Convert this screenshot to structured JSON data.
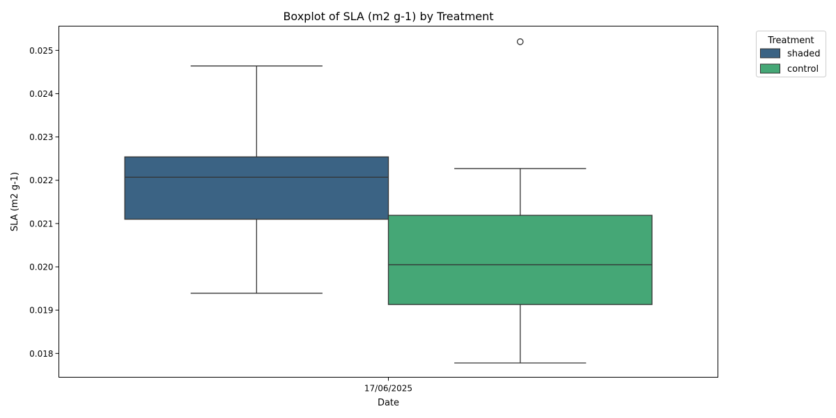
{
  "chart_data": {
    "type": "box",
    "title": "Boxplot of SLA (m2 g-1) by Treatment",
    "xlabel": "Date",
    "ylabel": "SLA (m2 g-1)",
    "categories": [
      "17/06/2025"
    ],
    "ylim": [
      0.01745,
      0.02556
    ],
    "yticks": [
      0.018,
      0.019,
      0.02,
      0.021,
      0.022,
      0.023,
      0.024,
      0.025
    ],
    "ytick_labels": [
      "0.018",
      "0.019",
      "0.020",
      "0.021",
      "0.022",
      "0.023",
      "0.024",
      "0.025"
    ],
    "legend": {
      "title": "Treatment",
      "placement": "outside-top-right"
    },
    "grid": false,
    "series": [
      {
        "name": "shaded",
        "color": "#3b6384",
        "whisker_low": 0.01939,
        "q1": 0.0211,
        "median": 0.02207,
        "q3": 0.02254,
        "whisker_high": 0.02464,
        "outliers": []
      },
      {
        "name": "control",
        "color": "#45a776",
        "whisker_low": 0.01778,
        "q1": 0.01913,
        "median": 0.02005,
        "q3": 0.02119,
        "whisker_high": 0.02227,
        "outliers": [
          0.0252
        ]
      }
    ]
  }
}
